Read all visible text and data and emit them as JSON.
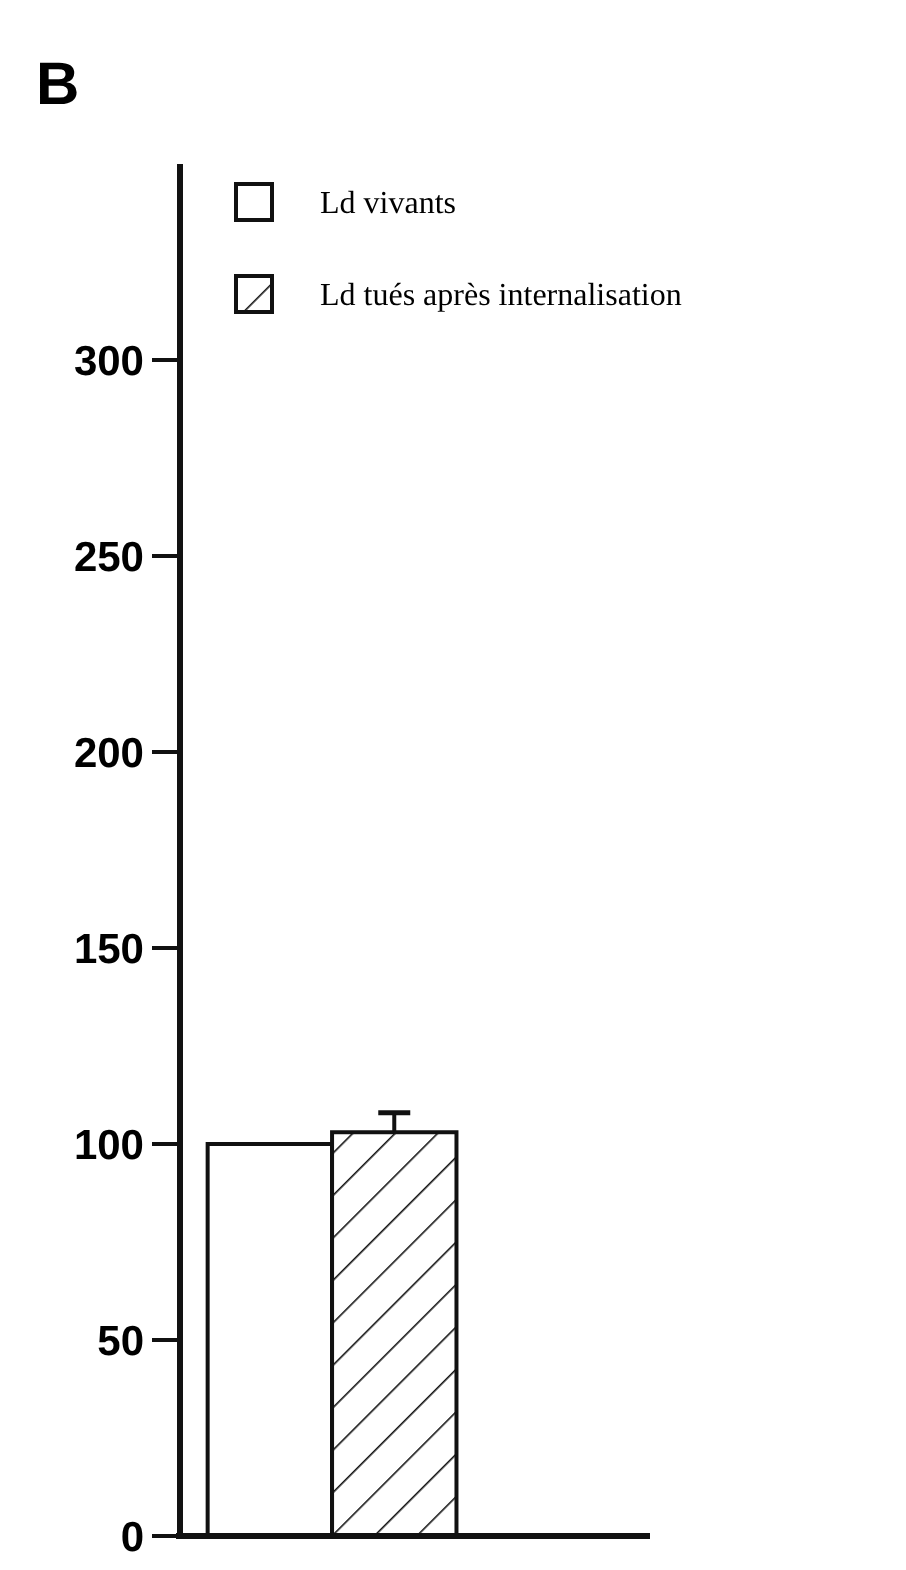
{
  "chart_data": {
    "type": "bar",
    "title": "B",
    "categories": [
      null
    ],
    "series": [
      {
        "name": "Ld vivants",
        "color": "#ffffff",
        "values": [
          100
        ]
      },
      {
        "name": "Ld tués après internalisation",
        "color": "#111111",
        "values": [
          103
        ],
        "errors": [
          5
        ]
      }
    ],
    "ylim": [
      0,
      350
    ],
    "yticks": [
      0,
      50,
      100,
      150,
      200,
      250,
      300
    ],
    "grid": false,
    "legend": "top right"
  }
}
